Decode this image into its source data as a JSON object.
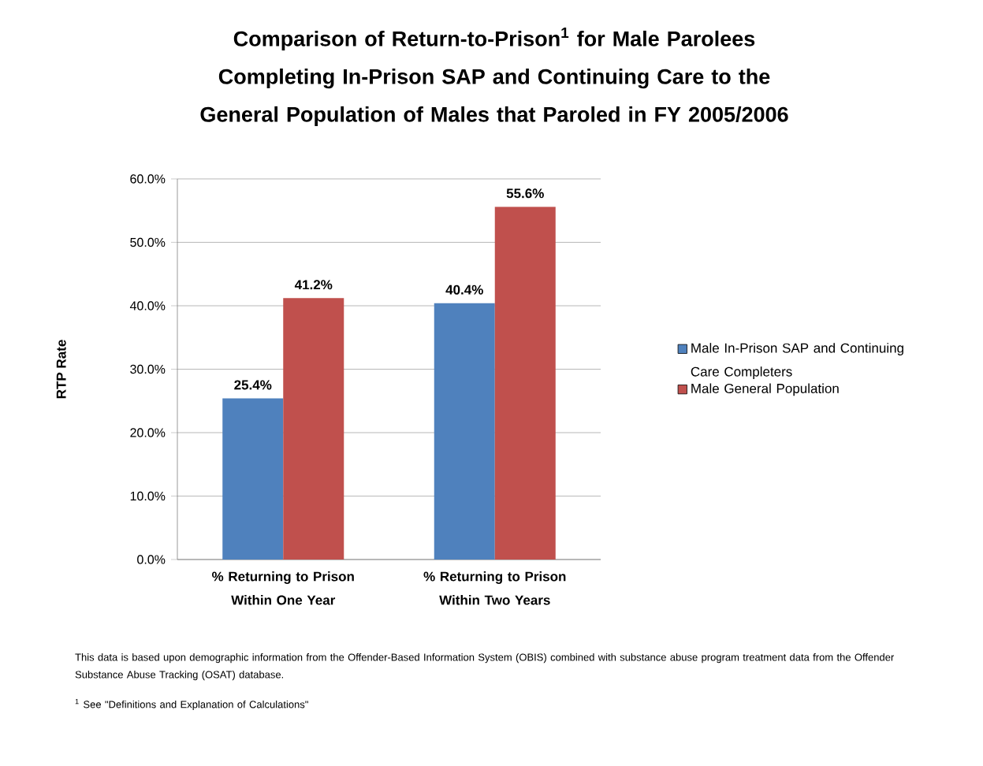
{
  "chart_data": {
    "type": "bar",
    "title": "Comparison of Return-to-Prison$^{1}$ for Male Parolees Completing In-Prison SAP and Continuing Care to the General Population of Males that Paroled in FY 2005/2006",
    "ylabel": "RTP Rate",
    "categories": [
      "% Returning to Prison Within One Year",
      "% Returning to Prison Within Two Years"
    ],
    "series": [
      {
        "name": "Male In-Prison SAP and Continuing Care Completers",
        "color": "#4f81bd",
        "values": [
          25.4,
          40.4
        ],
        "value_labels": [
          "25.4%",
          "40.4%"
        ]
      },
      {
        "name": "Male General Population",
        "color": "#c0504d",
        "values": [
          41.2,
          55.6
        ],
        "value_labels": [
          "41.2%",
          "55.6%"
        ]
      }
    ],
    "ylim": [
      0,
      60
    ],
    "yticks": [
      {
        "value": 0,
        "label": "0.0%"
      },
      {
        "value": 10,
        "label": "10.0%"
      },
      {
        "value": 20,
        "label": "20.0%"
      },
      {
        "value": 30,
        "label": "30.0%"
      },
      {
        "value": 40,
        "label": "40.0%"
      },
      {
        "value": 50,
        "label": "50.0%"
      },
      {
        "value": 60,
        "label": "60.0%"
      }
    ],
    "grid": "y",
    "legend": "right",
    "annotations": [
      "This data is based upon demographic information from the Offender-Based Information System (OBIS) combined with substance abuse program treatment data from the Offender Substance Abuse Tracking (OSAT) database.",
      "$^{1}$ See \"Definitions and Explanation of Calculations\""
    ]
  }
}
